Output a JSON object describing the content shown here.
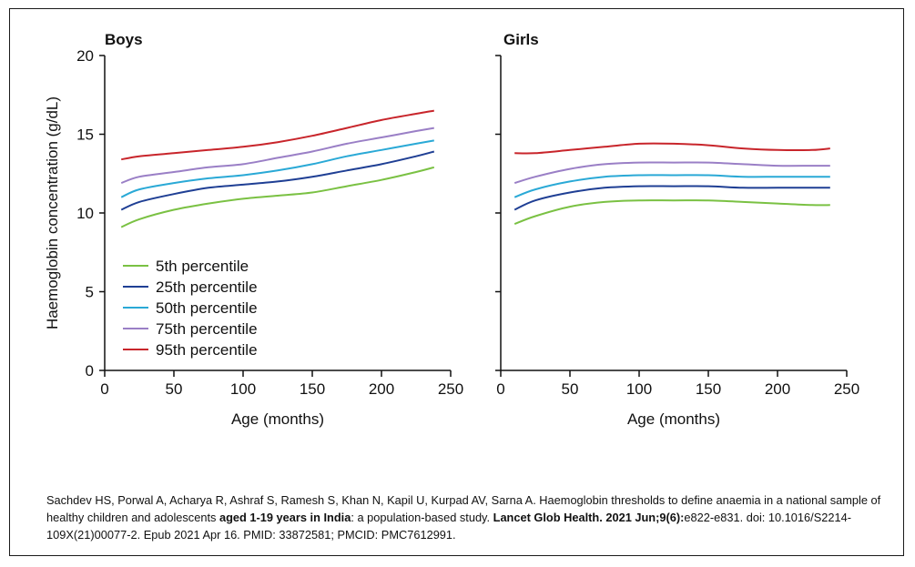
{
  "chart_data": [
    {
      "type": "line",
      "title": "Boys",
      "xlabel": "Age (months)",
      "ylabel": "Haemoglobin concentration (g/dL)",
      "xlim": [
        0,
        250
      ],
      "ylim": [
        0,
        20
      ],
      "xticks": [
        "0",
        "50",
        "100",
        "150",
        "200",
        "250"
      ],
      "yticks": [
        "0",
        "5",
        "10",
        "15",
        "20"
      ],
      "x": [
        12,
        25,
        50,
        75,
        100,
        125,
        150,
        175,
        200,
        225,
        238
      ],
      "series": [
        {
          "name": "5th percentile",
          "color": "#7ac143",
          "values": [
            9.1,
            9.6,
            10.2,
            10.6,
            10.9,
            11.1,
            11.3,
            11.7,
            12.1,
            12.6,
            12.9
          ]
        },
        {
          "name": "25th percentile",
          "color": "#1f3f94",
          "values": [
            10.2,
            10.7,
            11.2,
            11.6,
            11.8,
            12.0,
            12.3,
            12.7,
            13.1,
            13.6,
            13.9
          ]
        },
        {
          "name": "50th percentile",
          "color": "#2aa9d6",
          "values": [
            11.0,
            11.5,
            11.9,
            12.2,
            12.4,
            12.7,
            13.1,
            13.6,
            14.0,
            14.4,
            14.6
          ]
        },
        {
          "name": "75th percentile",
          "color": "#9a7fc6",
          "values": [
            11.9,
            12.3,
            12.6,
            12.9,
            13.1,
            13.5,
            13.9,
            14.4,
            14.8,
            15.2,
            15.4
          ]
        },
        {
          "name": "95th percentile",
          "color": "#c8252b",
          "values": [
            13.4,
            13.6,
            13.8,
            14.0,
            14.2,
            14.5,
            14.9,
            15.4,
            15.9,
            16.3,
            16.5
          ]
        }
      ]
    },
    {
      "type": "line",
      "title": "Girls",
      "xlabel": "Age (months)",
      "ylabel": "",
      "xlim": [
        0,
        250
      ],
      "ylim": [
        0,
        20
      ],
      "xticks": [
        "0",
        "50",
        "100",
        "150",
        "200",
        "250"
      ],
      "yticks": [],
      "x": [
        10,
        25,
        50,
        75,
        100,
        125,
        150,
        175,
        200,
        225,
        238
      ],
      "series": [
        {
          "name": "5th percentile",
          "color": "#7ac143",
          "values": [
            9.3,
            9.8,
            10.4,
            10.7,
            10.8,
            10.8,
            10.8,
            10.7,
            10.6,
            10.5,
            10.5
          ]
        },
        {
          "name": "25th percentile",
          "color": "#1f3f94",
          "values": [
            10.2,
            10.8,
            11.3,
            11.6,
            11.7,
            11.7,
            11.7,
            11.6,
            11.6,
            11.6,
            11.6
          ]
        },
        {
          "name": "50th percentile",
          "color": "#2aa9d6",
          "values": [
            11.0,
            11.5,
            12.0,
            12.3,
            12.4,
            12.4,
            12.4,
            12.3,
            12.3,
            12.3,
            12.3
          ]
        },
        {
          "name": "75th percentile",
          "color": "#9a7fc6",
          "values": [
            11.9,
            12.3,
            12.8,
            13.1,
            13.2,
            13.2,
            13.2,
            13.1,
            13.0,
            13.0,
            13.0
          ]
        },
        {
          "name": "95th percentile",
          "color": "#c8252b",
          "values": [
            13.8,
            13.8,
            14.0,
            14.2,
            14.4,
            14.4,
            14.3,
            14.1,
            14.0,
            14.0,
            14.1
          ]
        }
      ]
    }
  ],
  "legend": {
    "placement": "lower-left of Boys panel",
    "items": [
      "5th percentile",
      "25th percentile",
      "50th percentile",
      "75th percentile",
      "95th percentile"
    ]
  },
  "citation": {
    "part1": "Sachdev HS, Porwal A, Acharya R, Ashraf S, Ramesh S, Khan N, Kapil U, Kurpad AV, Sarna A. Haemoglobin thresholds to define anaemia in a national sample of healthy children and adolescents ",
    "bold1": "aged 1-19 years in India",
    "part2": ": a population-based study. ",
    "bold2": "Lancet Glob Health. 2021 Jun;9(6):",
    "part3": "e822-e831. doi: 10.1016/S2214-109X(21)00077-2. Epub 2021 Apr 16. PMID: 33872581; PMCID: PMC7612991."
  }
}
